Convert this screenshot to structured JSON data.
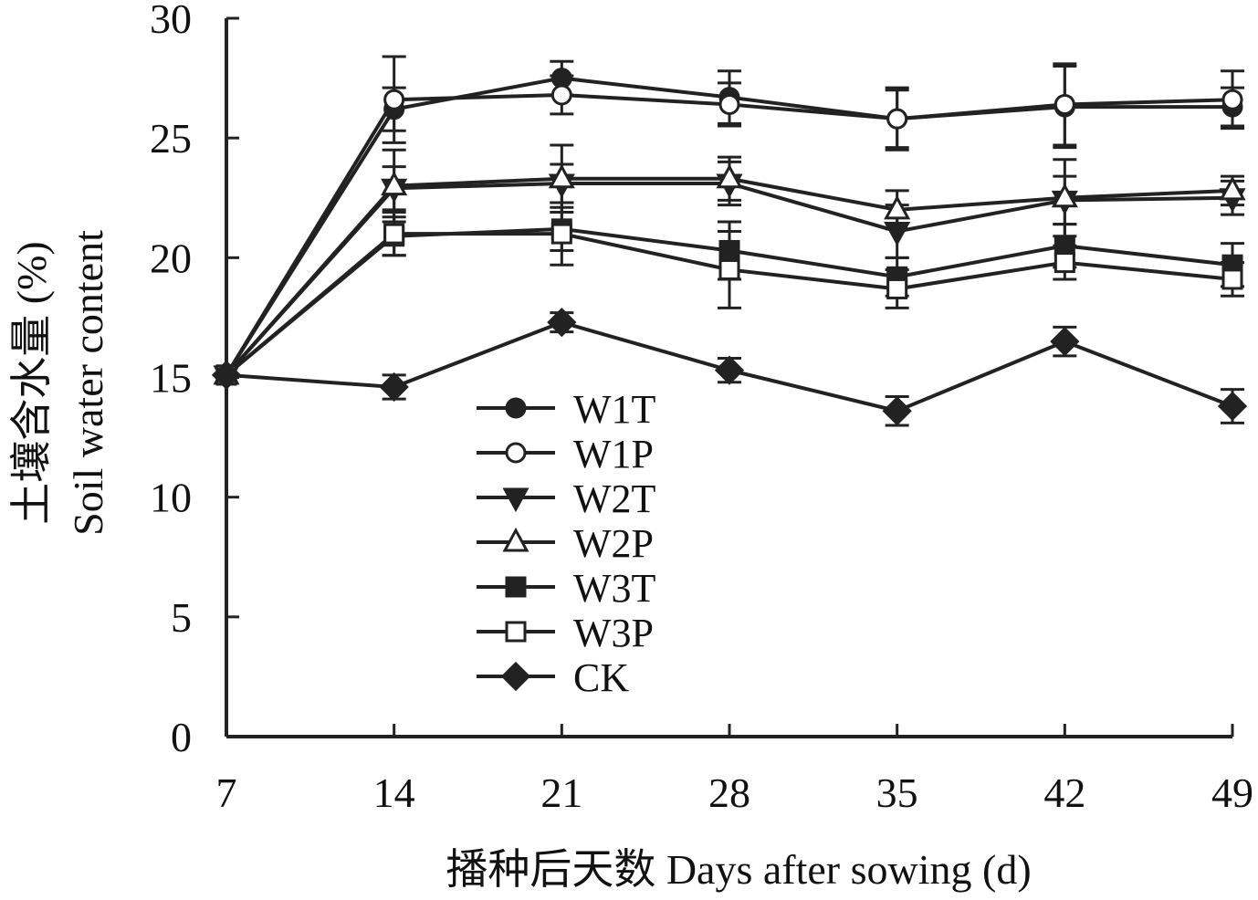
{
  "chart_data": {
    "type": "line",
    "xlabel": "播种后天数 Days after sowing (d)",
    "ylabel_cn": "土壤含水量 (%)",
    "ylabel_en": "Soil water content",
    "x": [
      7,
      14,
      21,
      28,
      35,
      42,
      49
    ],
    "ylim": [
      0,
      30
    ],
    "yticks": [
      0,
      5,
      10,
      15,
      20,
      25,
      30
    ],
    "legend_position": "center-left",
    "line_color": "#222222",
    "series": [
      {
        "name": "W1T",
        "marker": "circle-filled",
        "values": [
          15.1,
          26.2,
          27.5,
          26.7,
          25.8,
          26.3,
          26.3
        ],
        "errors": [
          0,
          0.9,
          0.7,
          1.1,
          1.3,
          1.7,
          0.8
        ]
      },
      {
        "name": "W1P",
        "marker": "circle-open",
        "values": [
          15.1,
          26.6,
          26.8,
          26.4,
          25.8,
          26.4,
          26.6
        ],
        "errors": [
          0,
          1.8,
          0.8,
          0.9,
          1.2,
          1.7,
          1.2
        ]
      },
      {
        "name": "W2T",
        "marker": "triangle-down-filled",
        "values": [
          15.1,
          22.9,
          23.1,
          23.1,
          21.1,
          22.4,
          22.5
        ],
        "errors": [
          0,
          0.9,
          0.8,
          0.9,
          1.1,
          1.0,
          0.7
        ]
      },
      {
        "name": "W2P",
        "marker": "triangle-up-open",
        "values": [
          15.1,
          23.0,
          23.3,
          23.3,
          22.0,
          22.5,
          22.8
        ],
        "errors": [
          0,
          1.5,
          1.4,
          0.9,
          0.8,
          1.6,
          0.6
        ]
      },
      {
        "name": "W3T",
        "marker": "square-filled",
        "values": [
          15.1,
          20.9,
          21.2,
          20.3,
          19.2,
          20.5,
          19.7
        ],
        "errors": [
          0,
          0.8,
          0.9,
          1.2,
          0.8,
          0.9,
          0.9
        ]
      },
      {
        "name": "W3P",
        "marker": "square-open",
        "values": [
          15.1,
          21.0,
          21.0,
          19.5,
          18.7,
          19.8,
          19.1
        ],
        "errors": [
          0,
          0.9,
          1.3,
          1.6,
          0.8,
          0.7,
          0.7
        ]
      },
      {
        "name": "CK",
        "marker": "diamond-filled",
        "values": [
          15.1,
          14.6,
          17.3,
          15.3,
          13.6,
          16.5,
          13.8
        ],
        "errors": [
          0,
          0.5,
          0.4,
          0.5,
          0.6,
          0.6,
          0.7
        ]
      }
    ]
  }
}
